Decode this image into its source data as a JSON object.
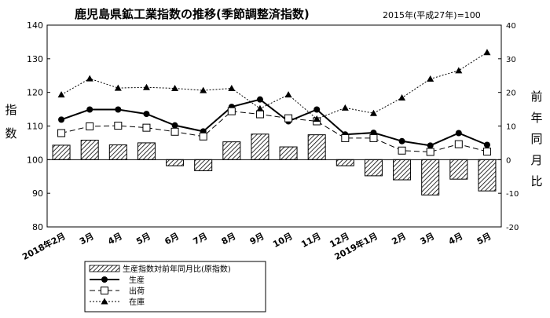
{
  "chart_data": {
    "type": "bar-line-combo",
    "title": "鹿児島県鉱工業指数の推移(季節調整済指数)",
    "subtitle": "2015年(平成27年)=100",
    "ylabel_left": "指数",
    "ylabel_right": "前年同月比",
    "ylim_left": [
      80,
      140
    ],
    "yticks_left": [
      80,
      90,
      100,
      110,
      120,
      130,
      140
    ],
    "ylim_right": [
      -20,
      40
    ],
    "yticks_right": [
      -20,
      -10,
      0,
      10,
      20,
      30,
      40
    ],
    "categories": [
      "2018年2月",
      "3月",
      "4月",
      "5月",
      "6月",
      "7月",
      "8月",
      "9月",
      "10月",
      "11月",
      "12月",
      "2019年1月",
      "2月",
      "3月",
      "4月",
      "5月"
    ],
    "bar_series": {
      "name": "生産指数対前年同月比(原指数)",
      "axis": "right",
      "values": [
        4.3,
        5.8,
        4.4,
        5.0,
        -1.8,
        -3.3,
        5.3,
        7.6,
        3.8,
        7.4,
        -1.8,
        -4.8,
        -6.0,
        -10.5,
        -5.8,
        -9.3
      ]
    },
    "line_series": [
      {
        "name": "生産",
        "axis": "left",
        "marker": "circle",
        "values": [
          111.9,
          114.9,
          114.9,
          113.6,
          110.2,
          108.4,
          115.7,
          117.9,
          111.4,
          114.9,
          107.5,
          108.0,
          105.5,
          104.2,
          107.9,
          104.4
        ]
      },
      {
        "name": "出荷",
        "axis": "left",
        "marker": "square",
        "values": [
          107.9,
          109.9,
          110.1,
          109.5,
          108.3,
          106.9,
          114.4,
          113.5,
          112.3,
          111.4,
          106.4,
          106.4,
          102.7,
          102.3,
          104.6,
          102.4
        ]
      },
      {
        "name": "在庫",
        "axis": "left",
        "marker": "triangle",
        "values": [
          119.3,
          124.1,
          121.3,
          121.5,
          121.2,
          120.6,
          121.2,
          115.2,
          119.3,
          112.1,
          115.4,
          113.8,
          118.4,
          124.0,
          126.5,
          131.9
        ]
      }
    ],
    "legend": {
      "position": "bottom-left",
      "items": [
        "生産指数対前年同月比(原指数)",
        "生産",
        "出荷",
        "在庫"
      ]
    },
    "grid": false
  }
}
